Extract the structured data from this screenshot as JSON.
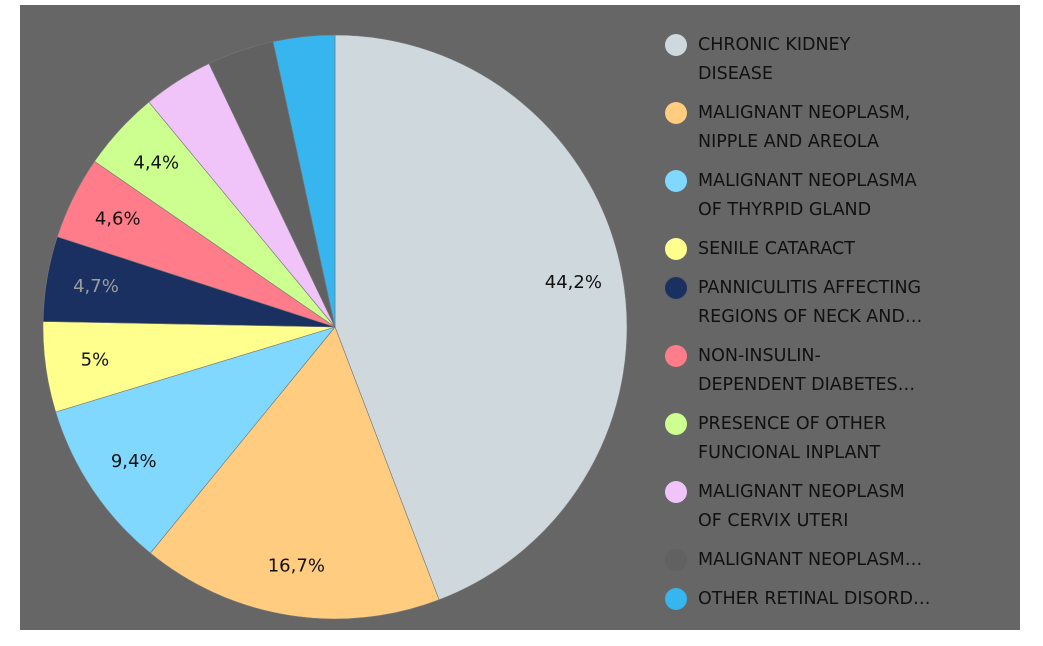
{
  "chart_data": {
    "type": "pie",
    "categories": [
      "CHRONIC KIDNEY\nDISEASE",
      "MALIGNANT NEOPLASM,\nNIPPLE AND AREOLA",
      "MALIGNANT NEOPLASMA\nOF THYRPID GLAND",
      "SENILE CATARACT",
      "PANNICULITIS AFFECTING\nREGIONS OF NECK AND…",
      "NON-INSULIN-\nDEPENDENT DIABETES…",
      "PRESENCE OF OTHER\nFUNCIONAL INPLANT",
      "MALIGNANT NEOPLASM\nOF CERVIX UTERI",
      "MALIGNANT NEOPLASM…",
      "OTHER RETINAL DISORD…"
    ],
    "values": [
      44.2,
      16.7,
      9.4,
      5,
      4.7,
      4.6,
      4.4,
      3.9,
      3.7,
      3.4
    ],
    "value_labels": [
      "44,2%",
      "16,7%",
      "9,4%",
      "5%",
      "4,7%",
      "4,6%",
      "4,4%",
      null,
      null,
      null
    ],
    "colors": [
      "#cfd8dc",
      "#ffcc80",
      "#80d8ff",
      "#ffff8d",
      "#1a3060",
      "#ff7c8a",
      "#ccff90",
      "#f0c4f8",
      "#616161",
      "#37b5ef"
    ],
    "legend": "right"
  }
}
